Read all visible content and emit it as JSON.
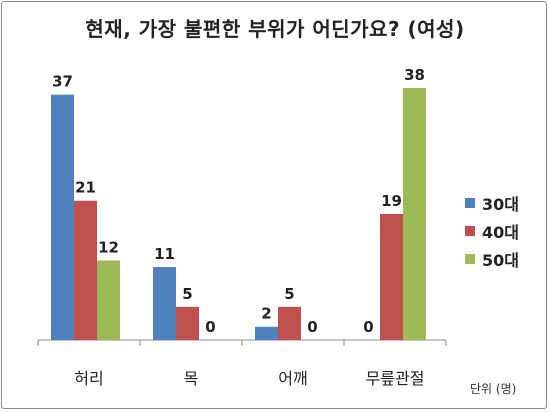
{
  "chart_data": {
    "type": "bar",
    "title": "현재, 가장 불편한 부위가 어딘가요? (여성)",
    "categories": [
      "허리",
      "목",
      "어깨",
      "무릎관절"
    ],
    "series": [
      {
        "name": "30대",
        "color": "#4f81bd",
        "values": [
          37,
          11,
          2,
          0
        ]
      },
      {
        "name": "40대",
        "color": "#c0504d",
        "values": [
          21,
          5,
          5,
          19
        ]
      },
      {
        "name": "50대",
        "color": "#9bbb59",
        "values": [
          12,
          0,
          0,
          38
        ]
      }
    ],
    "ylim": [
      0,
      40
    ],
    "grid": false,
    "legend": "right",
    "unit_label": "단위 (명)"
  }
}
